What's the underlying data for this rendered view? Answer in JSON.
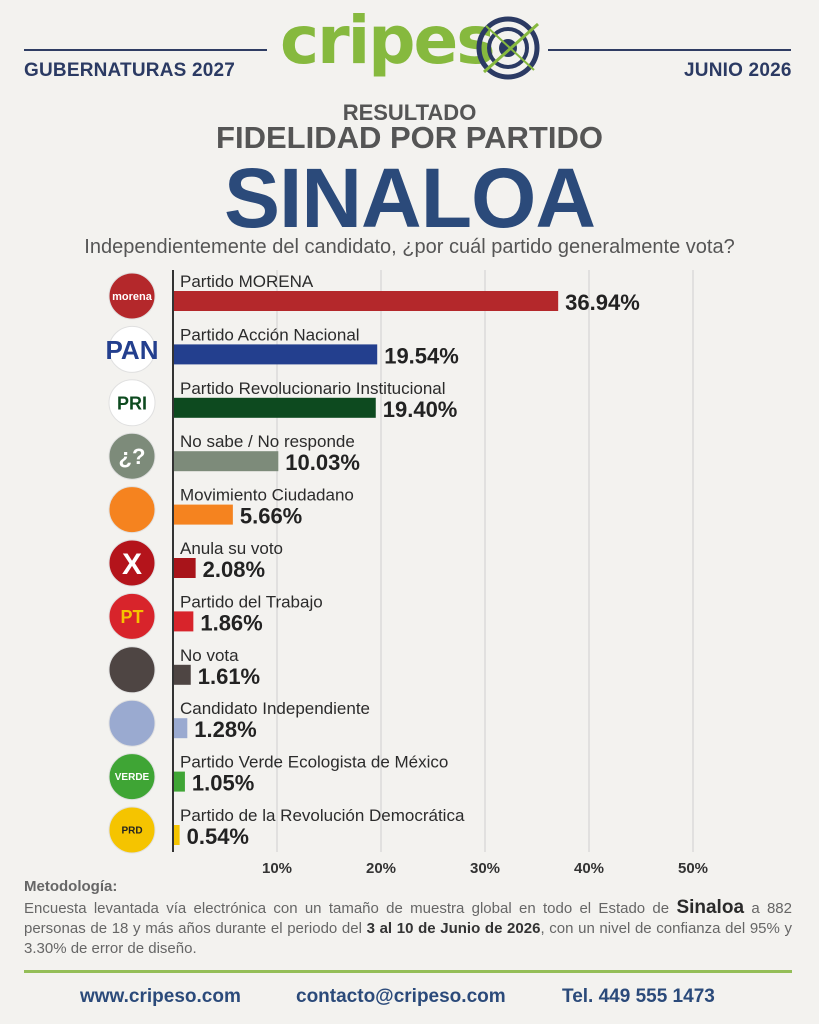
{
  "header": {
    "left": "GUBERNATURAS 2027",
    "right": "JUNIO 2026",
    "logo": "cripes"
  },
  "title": {
    "line1": "RESULTADO",
    "line2": "FIDELIDAD POR PARTIDO",
    "state": "SINALOA",
    "question": "Independientemente del candidato, ¿por cuál partido generalmente vota?"
  },
  "chart_data": {
    "type": "bar",
    "orientation": "horizontal",
    "categories": [
      "Partido MORENA",
      "Partido Acción Nacional",
      "Partido Revolucionario Institucional",
      "No sabe / No responde",
      "Movimiento Ciudadano",
      "Anula su voto",
      "Partido del Trabajo",
      "No vota",
      "Candidato Independiente",
      "Partido Verde Ecologista de México",
      "Partido de la Revolución Democrática"
    ],
    "values": [
      36.94,
      19.54,
      19.4,
      10.03,
      5.66,
      2.08,
      1.86,
      1.61,
      1.28,
      1.05,
      0.54
    ],
    "value_labels": [
      "36.94%",
      "19.54%",
      "19.40%",
      "10.03%",
      "5.66%",
      "2.08%",
      "1.86%",
      "1.61%",
      "1.28%",
      "1.05%",
      "0.54%"
    ],
    "colors": [
      "#b4282b",
      "#233f8e",
      "#0d4a1f",
      "#7d8b7a",
      "#f5831f",
      "#a8141a",
      "#d8242b",
      "#4e4543",
      "#9aaad0",
      "#3fa535",
      "#f5c400"
    ],
    "icons": [
      "morena-logo",
      "pan-logo",
      "pri-logo",
      "question-icon",
      "mc-logo",
      "x-mark-icon",
      "pt-logo",
      "ballot-icon",
      "person-icon",
      "verde-logo",
      "prd-logo"
    ],
    "icon_text": [
      "morena",
      "PAN",
      "PRI",
      "¿?",
      "",
      "X",
      "PT",
      "",
      "",
      "VERDE",
      "PRD"
    ],
    "icon_colors": [
      "#b4282b",
      "#ffffff",
      "#ffffff",
      "#7d8b7a",
      "#f5831f",
      "#b4141b",
      "#d8242b",
      "#4e4543",
      "#9aaad0",
      "#3fa535",
      "#f5c400"
    ],
    "x_ticks": [
      10,
      20,
      30,
      40,
      50
    ],
    "x_tick_labels": [
      "10%",
      "20%",
      "30%",
      "40%",
      "50%"
    ],
    "xlim": [
      0,
      50
    ],
    "grid": true
  },
  "methodology": {
    "title": "Metodología:",
    "t1": "Encuesta levantada vía electrónica con un tamaño de muestra global en todo el Estado de ",
    "state": "Sinaloa",
    "t2": " a 882 personas de 18 y más años durante el periodo del ",
    "dates": "3 al 10 de Junio de 2026",
    "t3": ", con un nivel de confianza del 95% y 3.30% de error de diseño."
  },
  "footer": {
    "web": "www.cripeso.com",
    "email": "contacto@cripeso.com",
    "phone": "Tel. 449 555 1473"
  }
}
